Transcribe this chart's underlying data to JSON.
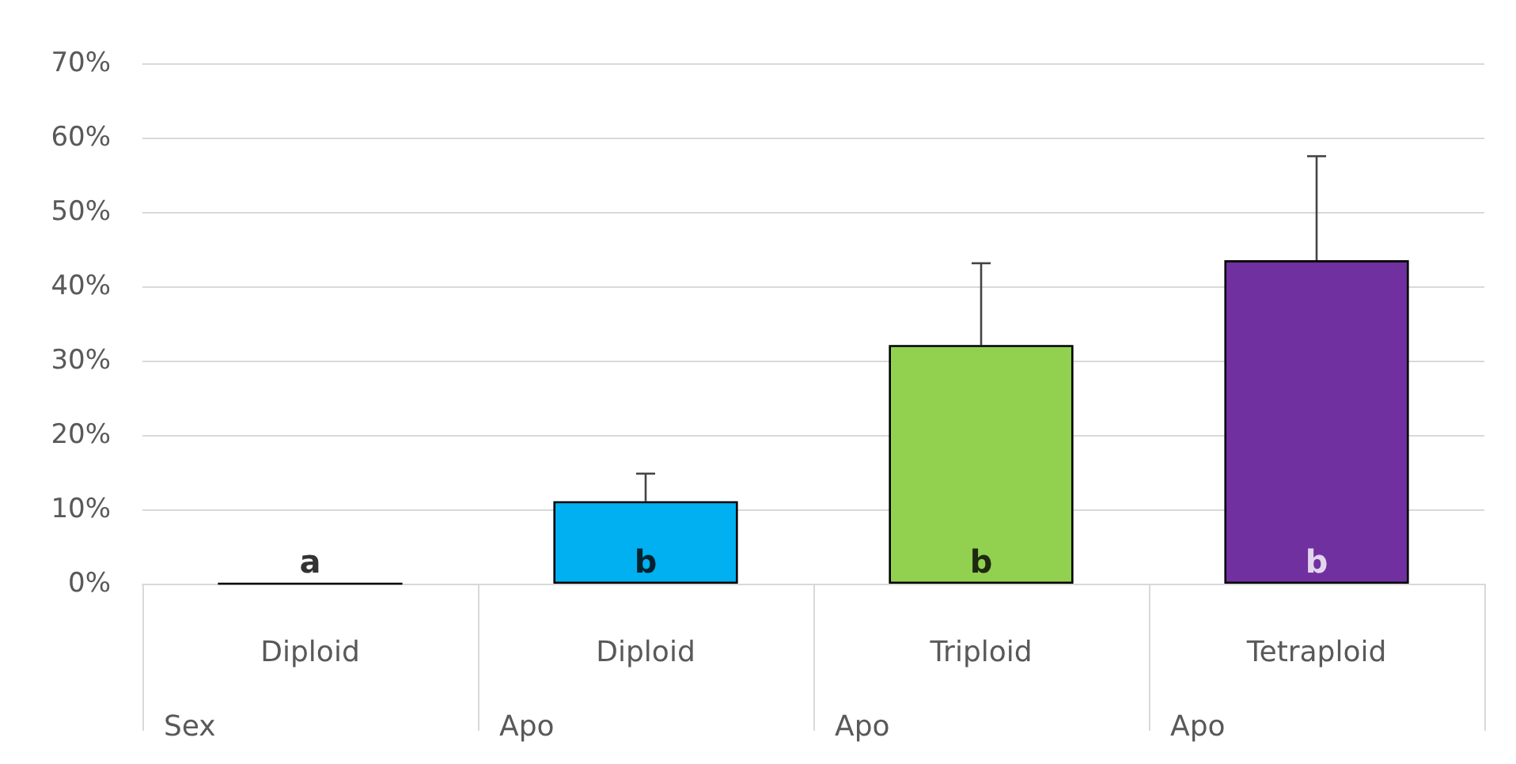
{
  "chart_data": {
    "type": "bar",
    "categories": [
      "Diploid\nSex",
      "Diploid\nApo",
      "Triploid\nApo",
      "Tetraploid\nApo"
    ],
    "values": [
      0,
      11.1,
      32.1,
      43.5
    ],
    "colors": [
      "#000000",
      "#00b0f0",
      "#92d050",
      "#7030a0"
    ],
    "errors": [
      null,
      [
        11.1,
        14.8
      ],
      [
        32.1,
        43.1
      ],
      [
        43.5,
        57.5
      ]
    ],
    "ylim": [
      0,
      70
    ],
    "yticks": [
      {
        "value": 0,
        "label": "0%"
      },
      {
        "value": 10,
        "label": "10%"
      },
      {
        "value": 20,
        "label": "20%"
      },
      {
        "value": 30,
        "label": "30%"
      },
      {
        "value": 40,
        "label": "40%"
      },
      {
        "value": 50,
        "label": "50%"
      },
      {
        "value": 60,
        "label": "60%"
      },
      {
        "value": 70,
        "label": "70%"
      }
    ],
    "annotations": [
      "a",
      "b",
      "b",
      "b"
    ],
    "grid": "y"
  }
}
